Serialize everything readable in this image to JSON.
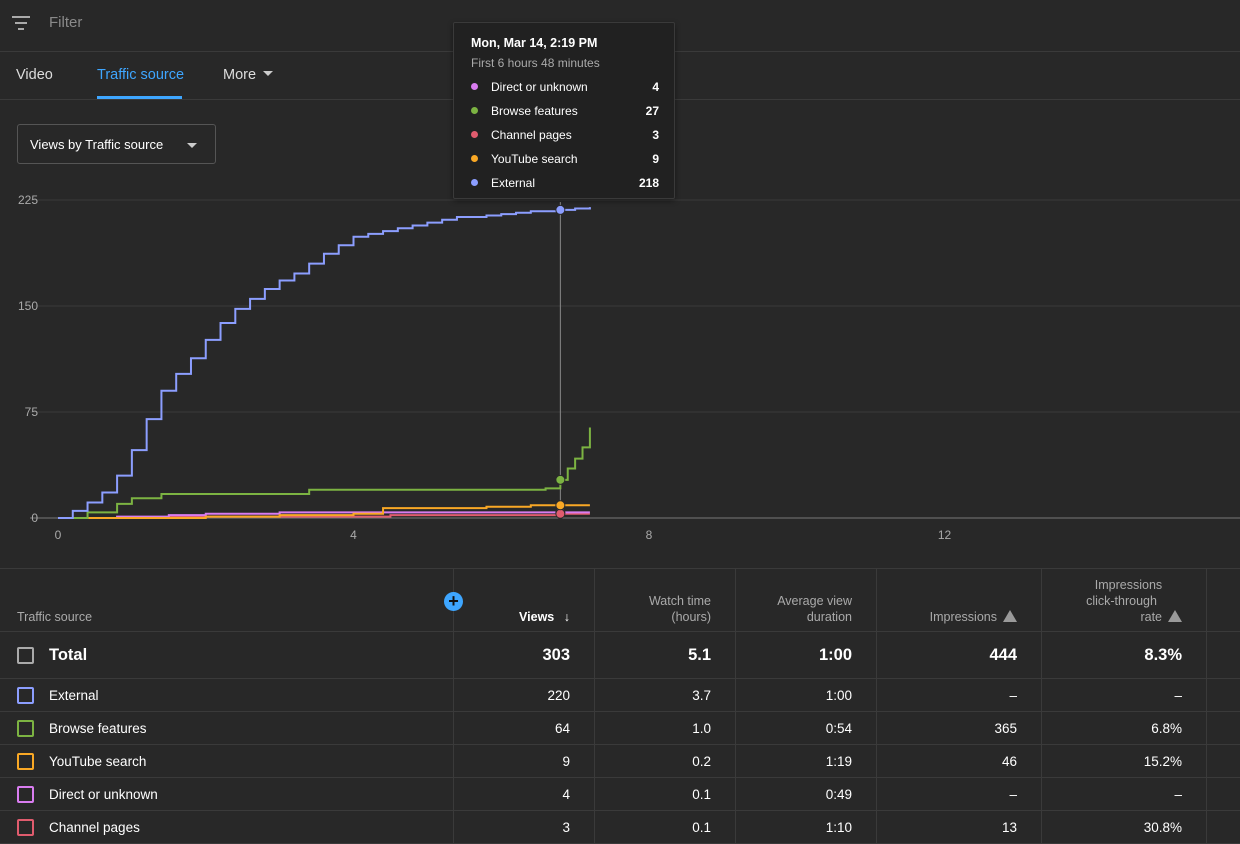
{
  "filter": {
    "placeholder": "Filter",
    "icon": "filter-icon"
  },
  "tabs": [
    {
      "label": "Video"
    },
    {
      "label": "Traffic source",
      "active": true
    },
    {
      "label": "More"
    }
  ],
  "dropdown": {
    "label": "Views by Traffic source"
  },
  "chart_data": {
    "type": "line",
    "ylim": [
      0,
      225
    ],
    "yticks": [
      "225",
      "150",
      "75",
      "0"
    ],
    "xticks": [
      "0",
      "4",
      "8",
      "12"
    ],
    "xlim": [
      0,
      16
    ],
    "series": [
      {
        "name": "External",
        "color": "#8c9eff",
        "x": [
          0,
          0.2,
          0.4,
          0.6,
          0.8,
          1.0,
          1.2,
          1.4,
          1.6,
          1.8,
          2.0,
          2.2,
          2.4,
          2.6,
          2.8,
          3.0,
          3.2,
          3.4,
          3.6,
          3.8,
          4.0,
          4.2,
          4.4,
          4.6,
          4.8,
          5.0,
          5.2,
          5.4,
          5.6,
          5.8,
          6.0,
          6.2,
          6.4,
          6.6,
          6.8,
          7.0,
          7.2
        ],
        "y": [
          0,
          5,
          11,
          18,
          30,
          48,
          70,
          90,
          102,
          113,
          126,
          138,
          148,
          155,
          162,
          168,
          173,
          180,
          187,
          193,
          199,
          201,
          203,
          205,
          207,
          209,
          211,
          213,
          213,
          214,
          215,
          216,
          217,
          217,
          218,
          219,
          220
        ]
      },
      {
        "name": "Browse features",
        "color": "#7cb342",
        "x": [
          0,
          0.4,
          0.8,
          1.0,
          1.4,
          2.0,
          3.0,
          3.4,
          4.0,
          5.0,
          6.0,
          6.6,
          6.8,
          6.9,
          7.0,
          7.1,
          7.2
        ],
        "y": [
          0,
          4,
          10,
          14,
          17,
          17,
          17,
          20,
          20,
          20,
          20,
          21,
          27,
          35,
          42,
          50,
          64
        ]
      },
      {
        "name": "YouTube search",
        "color": "#f9a825",
        "x": [
          0,
          1.0,
          2.0,
          3.0,
          4.0,
          4.4,
          5.0,
          5.8,
          6.4,
          6.8,
          7.2
        ],
        "y": [
          0,
          0,
          1,
          2,
          3,
          7,
          7,
          8,
          9,
          9,
          9
        ]
      },
      {
        "name": "Direct or unknown",
        "color": "#d97cf0",
        "x": [
          0,
          0.8,
          1.5,
          2.0,
          3.0,
          4.0,
          6.8,
          7.2
        ],
        "y": [
          0,
          1,
          2,
          3,
          4,
          4,
          4,
          4
        ]
      },
      {
        "name": "Channel pages",
        "color": "#e05c6e",
        "x": [
          0,
          1.5,
          3.0,
          4.5,
          6.8,
          7.2
        ],
        "y": [
          0,
          1,
          1,
          2,
          3,
          3
        ]
      }
    ],
    "hover_x": 6.8,
    "tooltip": {
      "title": "Mon, Mar 14, 2:19 PM",
      "subtitle": "First 6 hours 48 minutes",
      "rows": [
        {
          "name": "Direct or unknown",
          "value": "4",
          "color": "#d97cf0"
        },
        {
          "name": "Browse features",
          "value": "27",
          "color": "#7cb342"
        },
        {
          "name": "Channel pages",
          "value": "3",
          "color": "#e05c6e"
        },
        {
          "name": "YouTube search",
          "value": "9",
          "color": "#f9a825"
        },
        {
          "name": "External",
          "value": "218",
          "color": "#8c9eff"
        }
      ]
    }
  },
  "table": {
    "headers": {
      "source": "Traffic source",
      "views": "Views",
      "watch1": "Watch time",
      "watch2": "(hours)",
      "avg1": "Average view",
      "avg2": "duration",
      "impressions": "Impressions",
      "ctr1": "Impressions",
      "ctr2": "click-through",
      "ctr3": "rate"
    },
    "rows": [
      {
        "name": "Total",
        "views": "303",
        "watch": "5.1",
        "avg": "1:00",
        "impressions": "444",
        "ctr": "8.3%",
        "color": "#aaaaaa"
      },
      {
        "name": "External",
        "views": "220",
        "watch": "3.7",
        "avg": "1:00",
        "impressions": "–",
        "ctr": "–",
        "color": "#8c9eff"
      },
      {
        "name": "Browse features",
        "views": "64",
        "watch": "1.0",
        "avg": "0:54",
        "impressions": "365",
        "ctr": "6.8%",
        "color": "#7cb342"
      },
      {
        "name": "YouTube search",
        "views": "9",
        "watch": "0.2",
        "avg": "1:19",
        "impressions": "46",
        "ctr": "15.2%",
        "color": "#f9a825"
      },
      {
        "name": "Direct or unknown",
        "views": "4",
        "watch": "0.1",
        "avg": "0:49",
        "impressions": "–",
        "ctr": "–",
        "color": "#d97cf0"
      },
      {
        "name": "Channel pages",
        "views": "3",
        "watch": "0.1",
        "avg": "1:10",
        "impressions": "13",
        "ctr": "30.8%",
        "color": "#e05c6e"
      }
    ]
  }
}
